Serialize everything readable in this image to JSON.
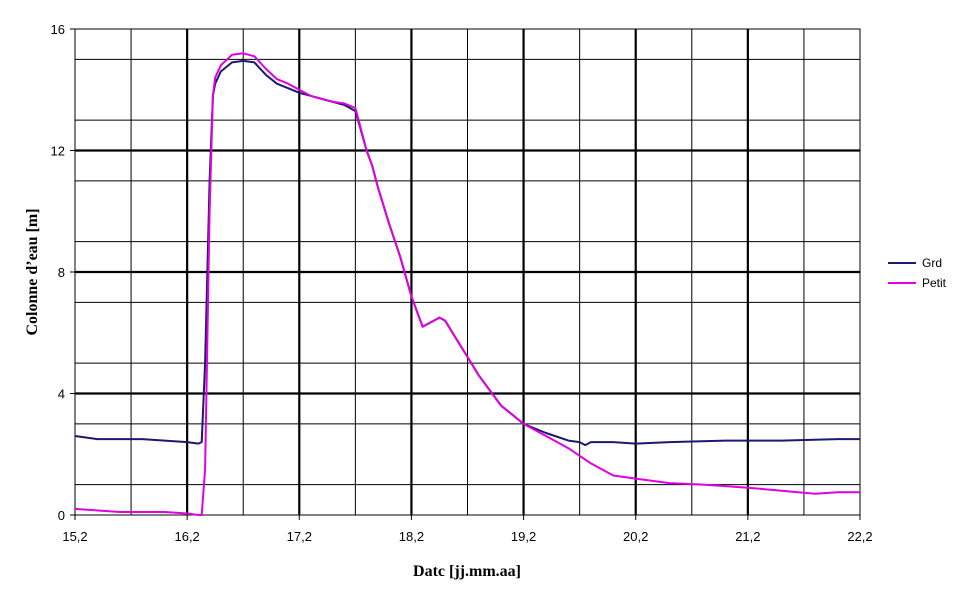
{
  "chart_data": {
    "type": "line",
    "xlabel": "Datc [jj.mm.aa]",
    "ylabel": "Colonne d’eau [m]",
    "xlim": [
      15.2,
      22.2
    ],
    "ylim": [
      0,
      16
    ],
    "x_ticks": [
      15.2,
      16.2,
      17.2,
      18.2,
      19.2,
      20.2,
      21.2,
      22.2
    ],
    "x_tick_labels": [
      "15,2",
      "16,2",
      "17,2",
      "18,2",
      "19,2",
      "20,2",
      "21,2",
      "22,2"
    ],
    "y_ticks": [
      0,
      4,
      8,
      12,
      16
    ],
    "y_tick_labels": [
      "0",
      "4",
      "8",
      "12",
      "16"
    ],
    "y_minor_gridlines": [
      1,
      3,
      5,
      7,
      9,
      11,
      13,
      15
    ],
    "grid": true,
    "legend_position": "right",
    "series": [
      {
        "name": "Grd",
        "color": "#1a1a6e",
        "x": [
          15.2,
          15.4,
          15.6,
          15.8,
          16.0,
          16.2,
          16.3,
          16.33,
          16.36,
          16.4,
          16.43,
          16.45,
          16.5,
          16.6,
          16.7,
          16.8,
          16.9,
          17.0,
          17.1,
          17.2,
          17.3,
          17.4,
          17.5,
          17.6,
          17.7,
          17.8,
          17.85,
          17.9,
          18.0,
          18.1,
          18.2,
          18.3,
          18.4,
          18.45,
          18.5,
          18.6,
          18.7,
          18.8,
          19.0,
          19.2,
          19.4,
          19.6,
          19.7,
          19.75,
          19.8,
          20.0,
          20.2,
          20.5,
          21.0,
          21.2,
          21.5,
          22.0,
          22.2
        ],
        "y": [
          2.6,
          2.5,
          2.5,
          2.5,
          2.45,
          2.4,
          2.35,
          2.4,
          5.0,
          11.0,
          13.8,
          14.2,
          14.6,
          14.9,
          14.95,
          14.9,
          14.5,
          14.2,
          14.05,
          13.9,
          13.8,
          13.7,
          13.6,
          13.5,
          13.3,
          12.0,
          11.5,
          10.8,
          9.6,
          8.5,
          7.2,
          6.2,
          6.4,
          6.5,
          6.4,
          5.8,
          5.2,
          4.6,
          3.6,
          3.0,
          2.7,
          2.45,
          2.4,
          2.3,
          2.4,
          2.4,
          2.35,
          2.4,
          2.45,
          2.45,
          2.45,
          2.5,
          2.5
        ]
      },
      {
        "name": "Petit",
        "color": "#e000e0",
        "x": [
          15.2,
          15.6,
          16.0,
          16.2,
          16.3,
          16.33,
          16.36,
          16.4,
          16.43,
          16.45,
          16.5,
          16.6,
          16.7,
          16.8,
          16.9,
          17.0,
          17.1,
          17.2,
          17.3,
          17.4,
          17.5,
          17.6,
          17.7,
          17.8,
          17.85,
          17.9,
          18.0,
          18.1,
          18.2,
          18.3,
          18.4,
          18.45,
          18.5,
          18.6,
          18.7,
          18.8,
          19.0,
          19.2,
          19.4,
          19.6,
          19.8,
          20.0,
          20.2,
          20.5,
          20.8,
          21.0,
          21.2,
          21.5,
          21.8,
          22.0,
          22.2
        ],
        "y": [
          0.2,
          0.1,
          0.1,
          0.05,
          0.0,
          0.0,
          1.5,
          10.0,
          13.8,
          14.4,
          14.8,
          15.15,
          15.2,
          15.1,
          14.7,
          14.35,
          14.2,
          14.0,
          13.8,
          13.7,
          13.6,
          13.55,
          13.4,
          12.0,
          11.5,
          10.8,
          9.6,
          8.5,
          7.2,
          6.2,
          6.4,
          6.5,
          6.4,
          5.8,
          5.2,
          4.6,
          3.6,
          3.0,
          2.6,
          2.2,
          1.7,
          1.3,
          1.2,
          1.05,
          1.0,
          0.95,
          0.9,
          0.8,
          0.7,
          0.75,
          0.75
        ]
      }
    ]
  }
}
